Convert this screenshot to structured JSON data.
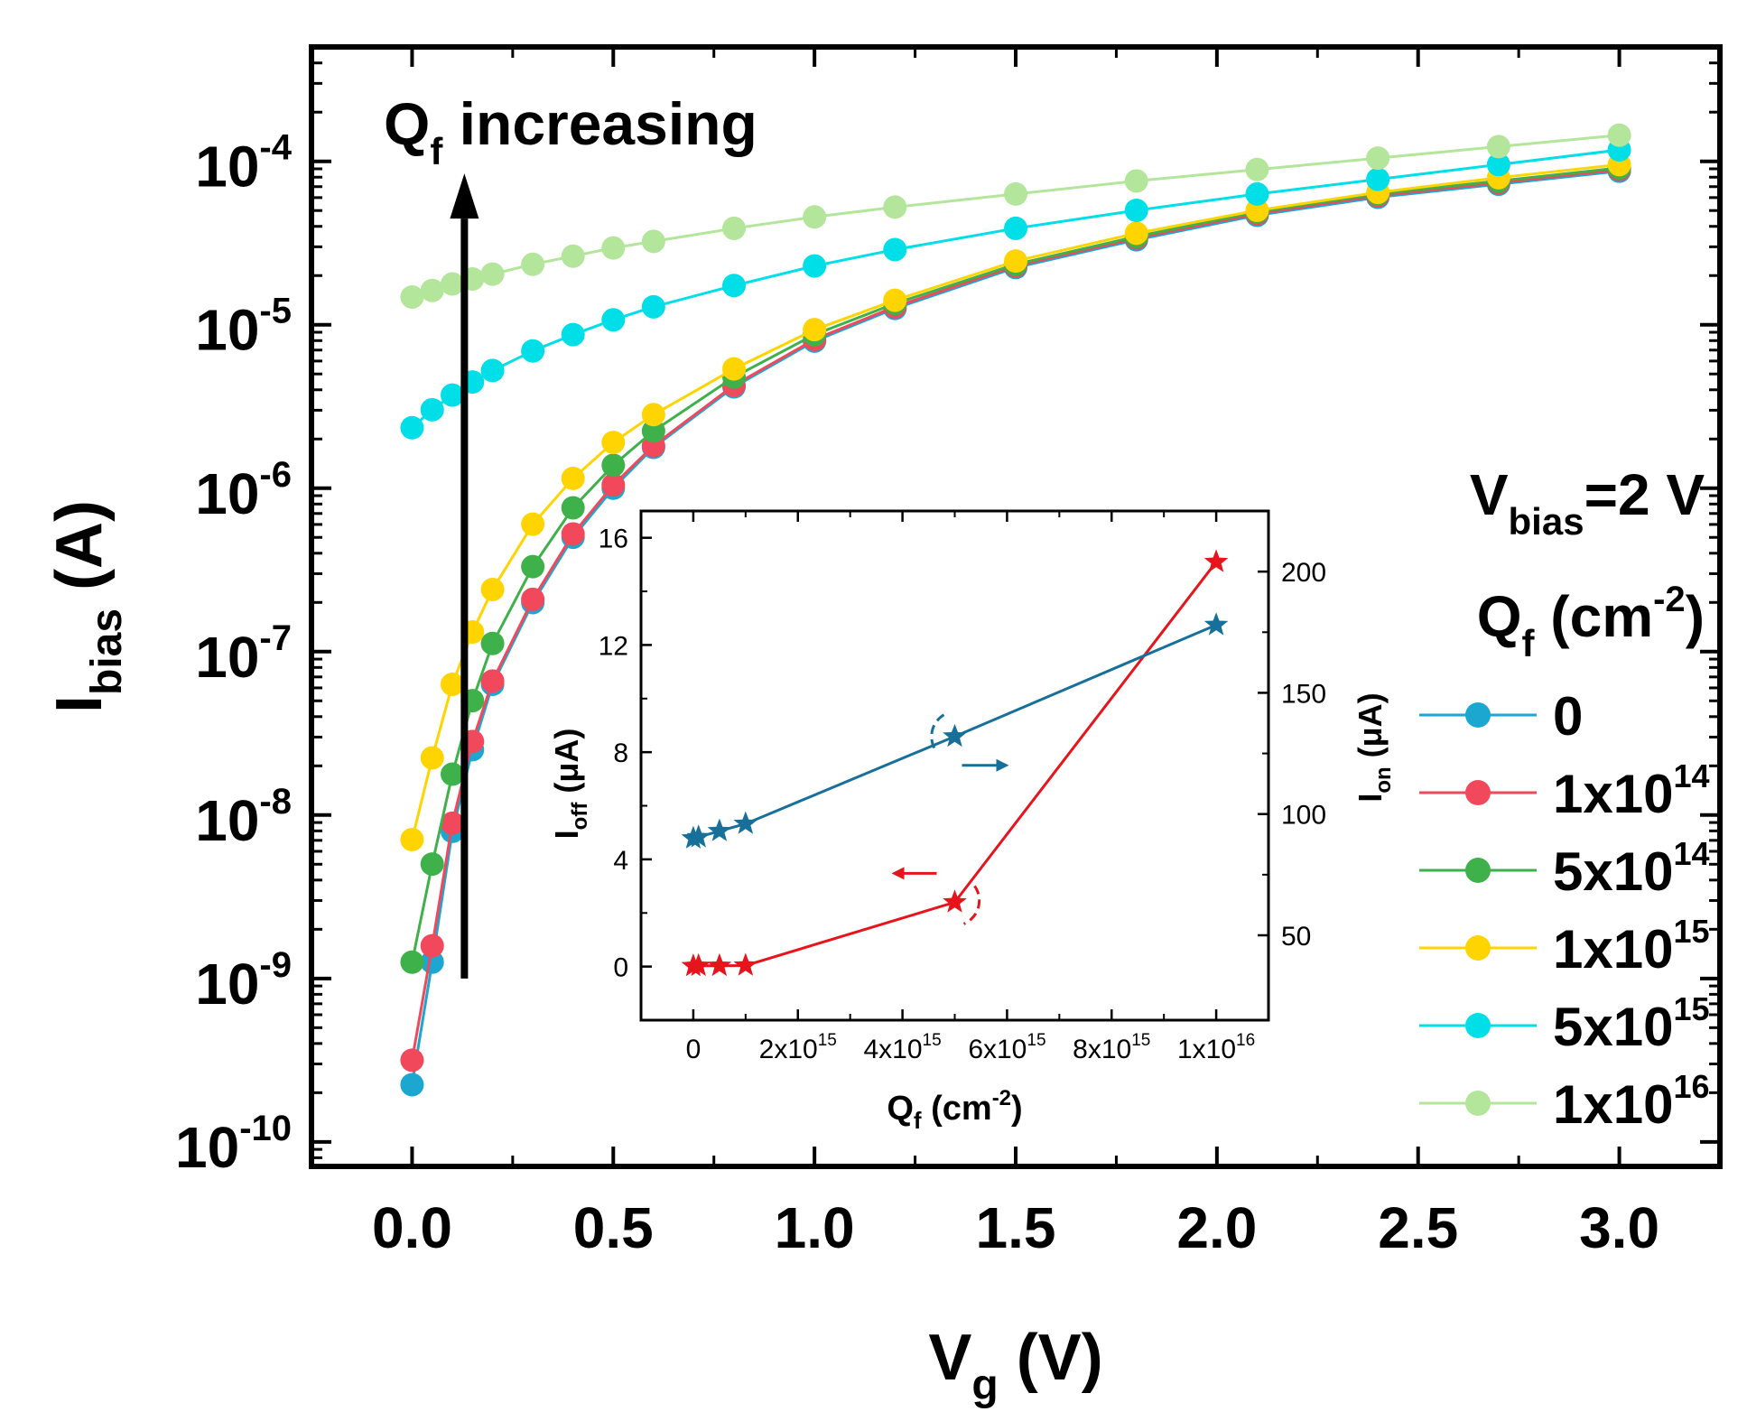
{
  "chart_data": [
    {
      "type": "line",
      "title": "",
      "xlabel": "V",
      "xlabel_sub": "g",
      "xlabel_unit": "(V)",
      "ylabel": "I",
      "ylabel_sub": "bias",
      "ylabel_unit": "(A)",
      "xlim": [
        -0.25,
        3.25
      ],
      "ylim_log10": [
        -10.15,
        -3.3
      ],
      "yscale": "log",
      "x_ticks": [
        "0.0",
        "0.5",
        "1.0",
        "1.5",
        "2.0",
        "2.5",
        "3.0"
      ],
      "y_ticks": [
        {
          "base": "10",
          "exp": "-10"
        },
        {
          "base": "10",
          "exp": "-9"
        },
        {
          "base": "10",
          "exp": "-8"
        },
        {
          "base": "10",
          "exp": "-7"
        },
        {
          "base": "10",
          "exp": "-6"
        },
        {
          "base": "10",
          "exp": "-5"
        },
        {
          "base": "10",
          "exp": "-4"
        }
      ],
      "annotation": {
        "main": "Q",
        "sub": "f",
        "rest": " increasing"
      },
      "condition": {
        "main": "V",
        "sub": "bias",
        "rest": "=2 V"
      },
      "legend_title": {
        "main": "Q",
        "sub": "f",
        "unit": " (cm",
        "unit_exp": "-2",
        "close": ")"
      },
      "legend_position": "right",
      "series": [
        {
          "name": "0",
          "label_base": "0",
          "label_exp": "",
          "color": "#1ba7d0",
          "x": [
            0,
            0.05,
            0.1,
            0.15,
            0.2,
            0.3,
            0.4,
            0.5,
            0.6,
            0.8,
            1.0,
            1.2,
            1.5,
            1.8,
            2.1,
            2.4,
            2.7,
            3.0
          ],
          "log_y": [
            -9.65,
            -8.9,
            -8.1,
            -7.6,
            -7.2,
            -6.7,
            -6.3,
            -6.0,
            -5.75,
            -5.38,
            -5.1,
            -4.9,
            -4.65,
            -4.48,
            -4.33,
            -4.22,
            -4.14,
            -4.06
          ]
        },
        {
          "name": "1x10^14",
          "label_base": "1x10",
          "label_exp": "14",
          "color": "#f2485c",
          "x": [
            0,
            0.05,
            0.1,
            0.15,
            0.2,
            0.3,
            0.4,
            0.5,
            0.6,
            0.8,
            1.0,
            1.2,
            1.5,
            1.8,
            2.1,
            2.4,
            2.7,
            3.0
          ],
          "log_y": [
            -9.5,
            -8.8,
            -8.05,
            -7.55,
            -7.18,
            -6.68,
            -6.28,
            -5.98,
            -5.74,
            -5.37,
            -5.09,
            -4.89,
            -4.64,
            -4.47,
            -4.32,
            -4.21,
            -4.13,
            -4.05
          ]
        },
        {
          "name": "5x10^14",
          "label_base": "5x10",
          "label_exp": "14",
          "color": "#3fb14b",
          "x": [
            0,
            0.05,
            0.1,
            0.15,
            0.2,
            0.3,
            0.4,
            0.5,
            0.6,
            0.8,
            1.0,
            1.2,
            1.5,
            1.8,
            2.1,
            2.4,
            2.7,
            3.0
          ],
          "log_y": [
            -8.9,
            -8.3,
            -7.75,
            -7.3,
            -6.95,
            -6.48,
            -6.12,
            -5.86,
            -5.65,
            -5.32,
            -5.06,
            -4.87,
            -4.63,
            -4.46,
            -4.31,
            -4.2,
            -4.12,
            -4.04
          ]
        },
        {
          "name": "1x10^15",
          "label_base": "1x10",
          "label_exp": "15",
          "color": "#ffd400",
          "x": [
            0,
            0.05,
            0.1,
            0.15,
            0.2,
            0.3,
            0.4,
            0.5,
            0.6,
            0.8,
            1.0,
            1.2,
            1.5,
            1.8,
            2.1,
            2.4,
            2.7,
            3.0
          ],
          "log_y": [
            -8.15,
            -7.65,
            -7.2,
            -6.88,
            -6.62,
            -6.22,
            -5.94,
            -5.72,
            -5.55,
            -5.27,
            -5.03,
            -4.85,
            -4.61,
            -4.44,
            -4.3,
            -4.19,
            -4.1,
            -4.02
          ]
        },
        {
          "name": "5x10^15",
          "label_base": "5x10",
          "label_exp": "15",
          "color": "#00dfe8",
          "x": [
            0,
            0.05,
            0.1,
            0.15,
            0.2,
            0.3,
            0.4,
            0.5,
            0.6,
            0.8,
            1.0,
            1.2,
            1.5,
            1.8,
            2.1,
            2.4,
            2.7,
            3.0
          ],
          "log_y": [
            -5.63,
            -5.52,
            -5.43,
            -5.35,
            -5.28,
            -5.16,
            -5.06,
            -4.97,
            -4.89,
            -4.76,
            -4.64,
            -4.54,
            -4.41,
            -4.3,
            -4.2,
            -4.11,
            -4.02,
            -3.93
          ]
        },
        {
          "name": "1x10^16",
          "label_base": "1x10",
          "label_exp": "16",
          "color": "#b3e69b",
          "x": [
            0,
            0.05,
            0.1,
            0.15,
            0.2,
            0.3,
            0.4,
            0.5,
            0.6,
            0.8,
            1.0,
            1.2,
            1.5,
            1.8,
            2.1,
            2.4,
            2.7,
            3.0
          ],
          "log_y": [
            -4.83,
            -4.79,
            -4.75,
            -4.72,
            -4.69,
            -4.63,
            -4.58,
            -4.53,
            -4.49,
            -4.41,
            -4.34,
            -4.28,
            -4.2,
            -4.12,
            -4.05,
            -3.98,
            -3.91,
            -3.84
          ]
        }
      ]
    },
    {
      "type": "line",
      "title": "",
      "xlabel": "Q",
      "xlabel_sub": "f",
      "xlabel_unit": " (cm",
      "xlabel_unit_exp": "-2",
      "xlabel_close": ")",
      "ylabel_left": "I",
      "ylabel_left_sub": "off",
      "ylabel_left_unit": " (μA)",
      "ylabel_right": "I",
      "ylabel_right_sub": "on",
      "ylabel_right_unit": " (μA)",
      "xlim": [
        -1000000000000000.0,
        1.1e+16
      ],
      "ylim_left": [
        -2.0,
        17.0
      ],
      "ylim_right": [
        15,
        225
      ],
      "x_ticks": [
        {
          "v": 0,
          "base": "0",
          "exp": ""
        },
        {
          "v": 2000000000000000.0,
          "base": "2x10",
          "exp": "15"
        },
        {
          "v": 4000000000000000.0,
          "base": "4x10",
          "exp": "15"
        },
        {
          "v": 6000000000000000.0,
          "base": "6x10",
          "exp": "15"
        },
        {
          "v": 8000000000000000.0,
          "base": "8x10",
          "exp": "15"
        },
        {
          "v": 1e+16,
          "base": "1x10",
          "exp": "16"
        }
      ],
      "y_ticks_left": [
        "0",
        "4",
        "8",
        "12",
        "16"
      ],
      "y_ticks_right": [
        "50",
        "100",
        "150",
        "200"
      ],
      "series": [
        {
          "name": "I_off",
          "axis": "left",
          "color": "#e8141c",
          "x": [
            0,
            100000000000000.0,
            500000000000000.0,
            1000000000000000.0,
            5000000000000000.0,
            1e+16
          ],
          "y": [
            0.02,
            0.03,
            0.03,
            0.04,
            2.4,
            15.1
          ]
        },
        {
          "name": "I_on",
          "axis": "right",
          "color": "#17709a",
          "x": [
            0,
            100000000000000.0,
            500000000000000.0,
            1000000000000000.0,
            5000000000000000.0,
            1e+16
          ],
          "y": [
            90,
            90.5,
            93,
            96,
            132,
            178
          ]
        }
      ]
    }
  ]
}
